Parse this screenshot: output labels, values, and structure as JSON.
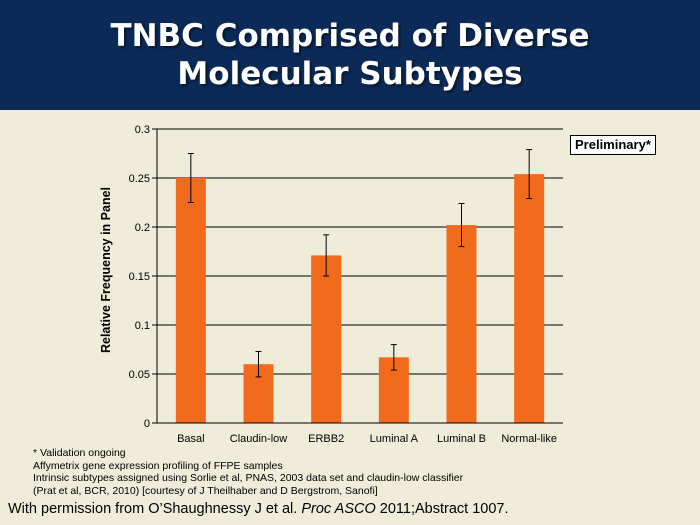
{
  "title": {
    "line1": "TNBC Comprised of Diverse",
    "line2": "Molecular Subtypes"
  },
  "badge": "Preliminary*",
  "chart_data": {
    "type": "bar",
    "ylabel": "Relative Frequency in Panel",
    "xlabel": "",
    "ylim": [
      0,
      0.3
    ],
    "yticks": [
      "0",
      "0.05",
      "0.1",
      "0.15",
      "0.2",
      "0.25",
      "0.3"
    ],
    "grid": true,
    "categories": [
      "Basal",
      "Claudin-low",
      "ERBB2",
      "Luminal A",
      "Luminal B",
      "Normal-like"
    ],
    "values": [
      0.25,
      0.06,
      0.171,
      0.067,
      0.202,
      0.254
    ],
    "error_bars": [
      0.025,
      0.013,
      0.021,
      0.013,
      0.022,
      0.025
    ],
    "colors": {
      "bar": "#f26b1d",
      "grid": "#000000"
    }
  },
  "notes": [
    "* Validation ongoing",
    "Affymetrix gene expression profiling of FFPE samples",
    "Intrinsic subtypes assigned using Sorlie et al, PNAS, 2003 data set and claudin-low classifier",
    "(Prat et al, BCR, 2010) [courtesy of J Theilhaber and D Bergstrom, Sanofi]"
  ],
  "footer": {
    "prefix": "With permission from O’Shaughnessy J et al. ",
    "journal": "Proc ASCO",
    "suffix": " 2011;Abstract 1007."
  },
  "colors": {
    "header_bg": "#0c2a57",
    "slide_bg": "#efecd9"
  }
}
